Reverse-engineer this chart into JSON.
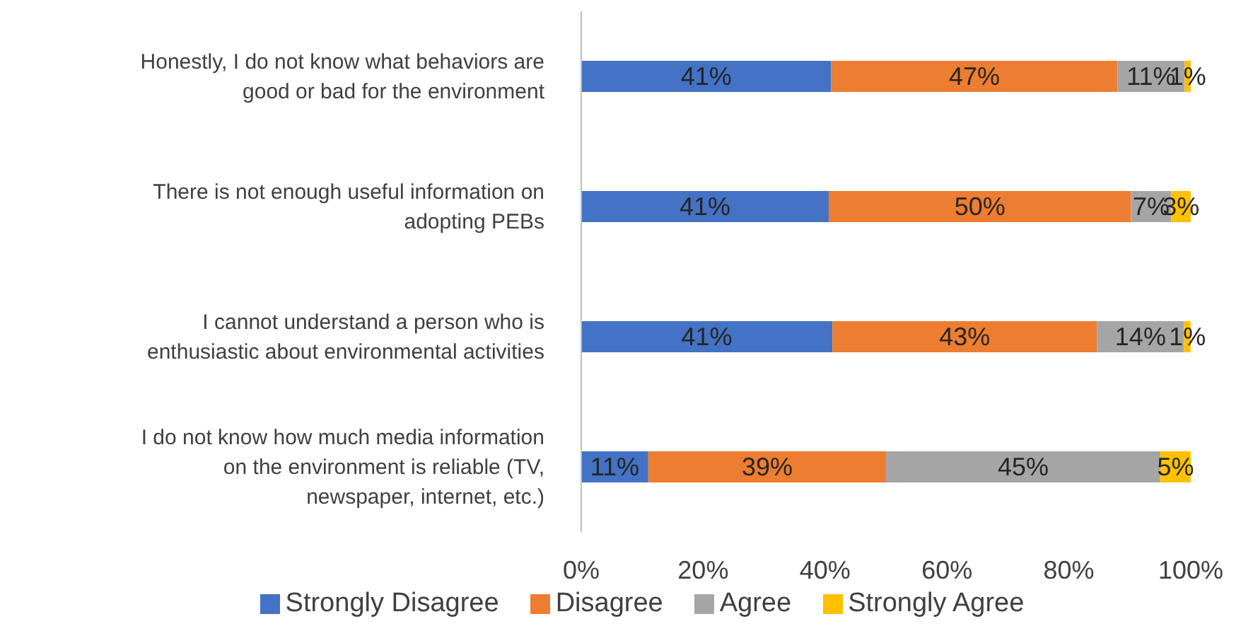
{
  "chart_data": {
    "type": "bar",
    "orientation": "horizontal",
    "stacked": true,
    "categories": [
      "Honestly, I do not know what behaviors are good or bad for the environment",
      "There is not enough useful information on adopting PEBs",
      "I cannot understand a person who is enthusiastic about environmental activities",
      "I do not know how much media information on the environment is reliable (TV, newspaper, internet, etc.)"
    ],
    "series": [
      {
        "name": "Strongly Disagree",
        "color": "#4472c4",
        "values": [
          41,
          40.6,
          41.2,
          11
        ],
        "value_labels": [
          "41%",
          "41%",
          "41%",
          "11%"
        ]
      },
      {
        "name": "Disagree",
        "color": "#ed7d31",
        "values": [
          47,
          49.6,
          43.4,
          39
        ],
        "value_labels": [
          "47%",
          "50%",
          "43%",
          "39%"
        ]
      },
      {
        "name": "Agree",
        "color": "#a5a5a5",
        "values": [
          11,
          6.6,
          14.3,
          45
        ],
        "value_labels": [
          "11%",
          "7%",
          "14%",
          "45%"
        ]
      },
      {
        "name": "Strongly Agree",
        "color": "#ffc000",
        "values": [
          1,
          3.2,
          1.1,
          5
        ],
        "value_labels": [
          "1%",
          "3%",
          "1%",
          "5%"
        ]
      }
    ],
    "xlim": [
      0,
      100
    ],
    "xticks": [
      {
        "value": 0,
        "label": "0%"
      },
      {
        "value": 20,
        "label": "20%"
      },
      {
        "value": 40,
        "label": "40%"
      },
      {
        "value": 60,
        "label": "60%"
      },
      {
        "value": 80,
        "label": "80%"
      },
      {
        "value": 100,
        "label": "100%"
      }
    ],
    "grid": false,
    "legend": "bottom"
  }
}
